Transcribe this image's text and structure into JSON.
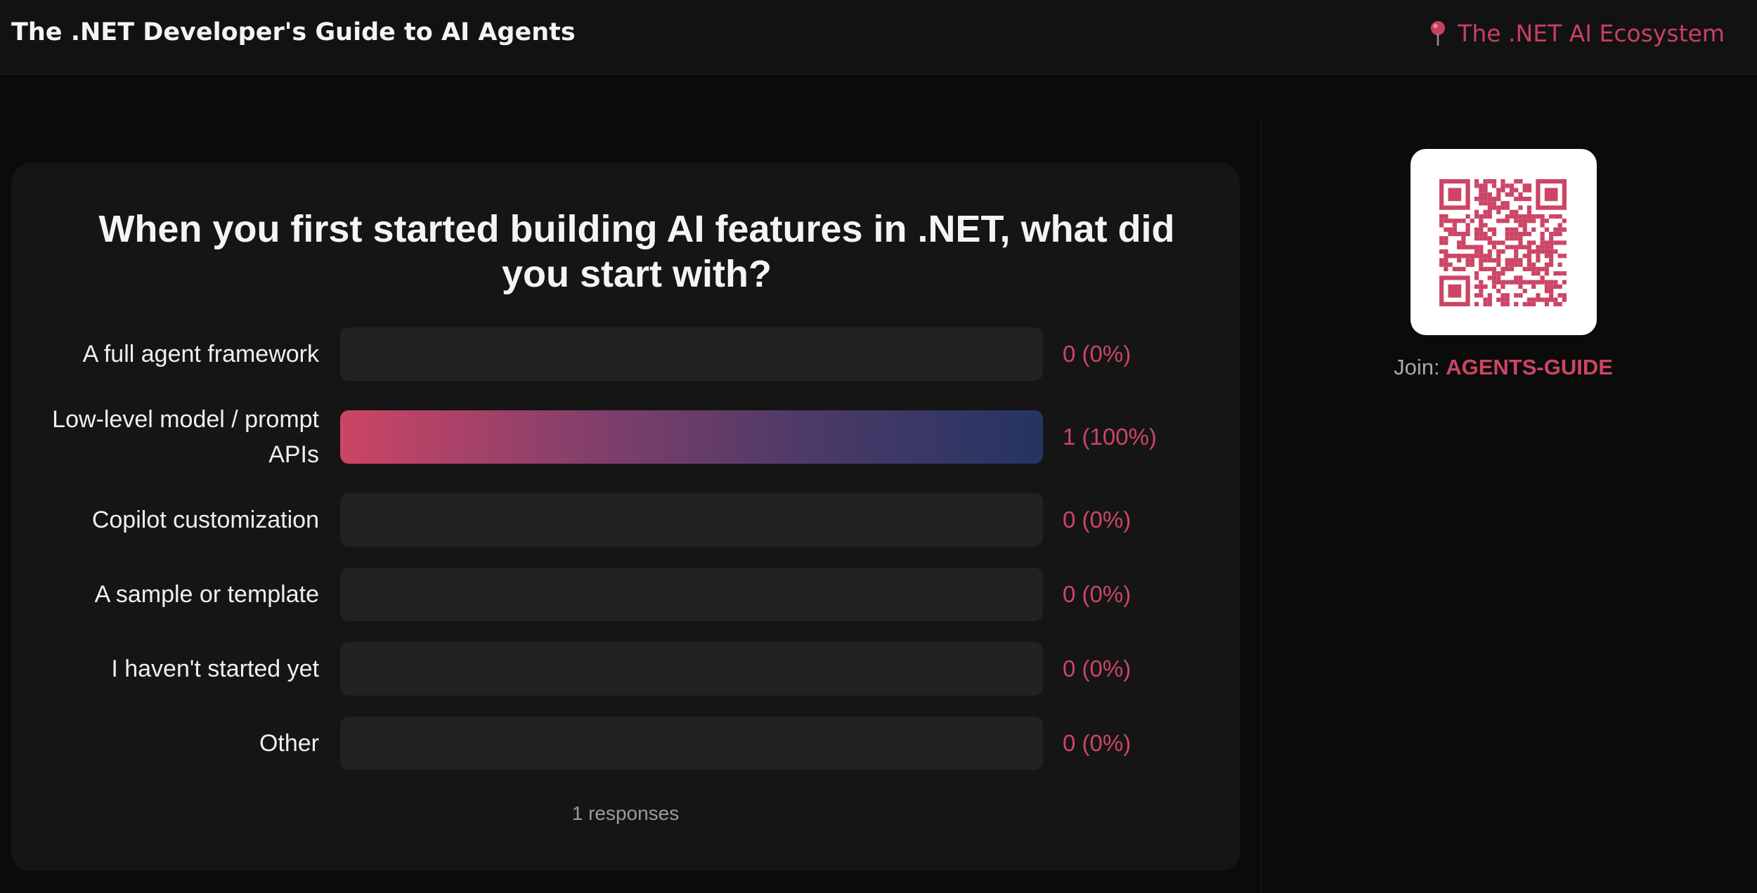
{
  "header": {
    "title": "The .NET Developer's Guide to AI Agents",
    "section_label": "The .NET AI Ecosystem",
    "section_icon": "pin-icon"
  },
  "poll": {
    "question": "When you first started building AI features in .NET, what did you start with?",
    "options": [
      {
        "label": "A full agent framework",
        "count_text": "0 (0%)",
        "share": 0
      },
      {
        "label": "Low-level model / prompt APIs",
        "count_text": "1 (100%)",
        "share": 1
      },
      {
        "label": "Copilot customization",
        "count_text": "0 (0%)",
        "share": 0
      },
      {
        "label": "A sample or template",
        "count_text": "0 (0%)",
        "share": 0
      },
      {
        "label": "I haven't started yet",
        "count_text": "0 (0%)",
        "share": 0
      },
      {
        "label": "Other",
        "count_text": "0 (0%)",
        "share": 0
      }
    ],
    "responses_text": "1 responses"
  },
  "join": {
    "label": "Join:",
    "code": "AGENTS-GUIDE",
    "qr_icon": "qr-code-icon"
  },
  "colors": {
    "accent": "#cc4565",
    "bar_gradient_end": "#243463",
    "background": "#0b0b0b",
    "card": "#151515",
    "track": "#222222"
  }
}
